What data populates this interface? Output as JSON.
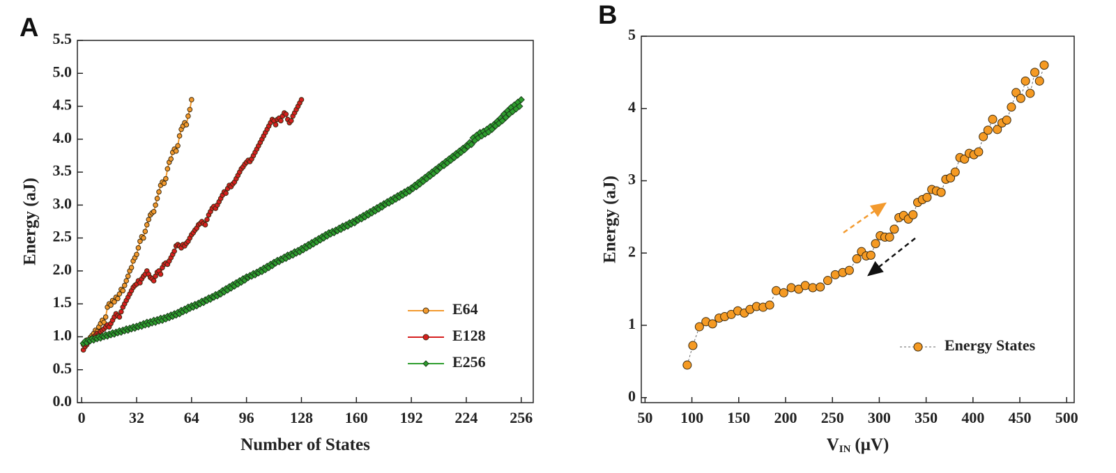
{
  "chart_data": [
    {
      "type": "line",
      "panel_label": "A",
      "xlabel": "Number of States",
      "ylabel": "Energy (aJ)",
      "xlim": [
        -2.5,
        263
      ],
      "ylim": [
        0,
        5.5
      ],
      "xticks": [
        0,
        32,
        64,
        96,
        128,
        160,
        192,
        224,
        256
      ],
      "yticks": [
        {
          "value": 0,
          "label": "0.0"
        },
        0.5,
        {
          "value": 1,
          "label": "1.0"
        },
        1.5,
        {
          "value": 2,
          "label": "2.0"
        },
        2.5,
        {
          "value": 3,
          "label": "3.0"
        },
        3.5,
        {
          "value": 4,
          "label": "4.0"
        },
        4.5,
        {
          "value": 5,
          "label": "5.0"
        },
        5.5
      ],
      "legend": "lower right",
      "series": [
        {
          "name": "E64",
          "color": "#f39a2e",
          "marker": "circle",
          "x": [
            1,
            2,
            3,
            4,
            5,
            6,
            7,
            8,
            9,
            10,
            11,
            12,
            13,
            14,
            15,
            16,
            17,
            18,
            19,
            20,
            21,
            22,
            23,
            24,
            25,
            26,
            27,
            28,
            29,
            30,
            31,
            32,
            33,
            34,
            35,
            36,
            37,
            38,
            39,
            40,
            41,
            42,
            43,
            44,
            45,
            46,
            47,
            48,
            49,
            50,
            51,
            52,
            53,
            54,
            55,
            56,
            57,
            58,
            59,
            60,
            61,
            62,
            63,
            64
          ],
          "values": [
            0.88,
            0.9,
            0.95,
            0.93,
            0.99,
            1.02,
            1.05,
            1.1,
            1.08,
            1.15,
            1.2,
            1.25,
            1.22,
            1.3,
            1.45,
            1.5,
            1.48,
            1.55,
            1.53,
            1.6,
            1.58,
            1.65,
            1.72,
            1.7,
            1.78,
            1.85,
            1.92,
            2.0,
            2.05,
            2.15,
            2.2,
            2.25,
            2.35,
            2.45,
            2.52,
            2.5,
            2.6,
            2.7,
            2.78,
            2.85,
            2.88,
            2.9,
            3.0,
            3.1,
            3.2,
            3.3,
            3.35,
            3.33,
            3.4,
            3.55,
            3.65,
            3.7,
            3.8,
            3.85,
            3.82,
            3.9,
            4.05,
            4.15,
            4.2,
            4.25,
            4.22,
            4.35,
            4.45,
            4.6
          ]
        },
        {
          "name": "E128",
          "color": "#d61f1f",
          "marker": "circle",
          "x": [
            1,
            2,
            3,
            4,
            5,
            6,
            7,
            8,
            9,
            10,
            11,
            12,
            13,
            14,
            15,
            16,
            17,
            18,
            19,
            20,
            21,
            22,
            23,
            24,
            25,
            26,
            27,
            28,
            29,
            30,
            31,
            32,
            33,
            34,
            35,
            36,
            37,
            38,
            39,
            40,
            41,
            42,
            43,
            44,
            45,
            46,
            47,
            48,
            49,
            50,
            51,
            52,
            53,
            54,
            55,
            56,
            57,
            58,
            59,
            60,
            61,
            62,
            63,
            64,
            65,
            66,
            67,
            68,
            69,
            70,
            71,
            72,
            73,
            74,
            75,
            76,
            77,
            78,
            79,
            80,
            81,
            82,
            83,
            84,
            85,
            86,
            87,
            88,
            89,
            90,
            91,
            92,
            93,
            94,
            95,
            96,
            97,
            98,
            99,
            100,
            101,
            102,
            103,
            104,
            105,
            106,
            107,
            108,
            109,
            110,
            111,
            112,
            113,
            114,
            115,
            116,
            117,
            118,
            119,
            120,
            121,
            122,
            123,
            124,
            125,
            126,
            127,
            128
          ],
          "values": [
            0.8,
            0.85,
            0.88,
            0.92,
            0.95,
            0.98,
            1.0,
            1.02,
            1.05,
            1.03,
            1.08,
            1.1,
            1.12,
            1.15,
            1.18,
            1.15,
            1.2,
            1.25,
            1.3,
            1.35,
            1.32,
            1.3,
            1.38,
            1.45,
            1.5,
            1.55,
            1.6,
            1.65,
            1.7,
            1.75,
            1.78,
            1.8,
            1.85,
            1.82,
            1.88,
            1.92,
            1.95,
            2.0,
            1.95,
            1.9,
            1.88,
            1.85,
            1.92,
            1.98,
            2.0,
            1.95,
            2.05,
            2.1,
            2.12,
            2.1,
            2.15,
            2.2,
            2.25,
            2.3,
            2.38,
            2.4,
            2.38,
            2.35,
            2.4,
            2.38,
            2.42,
            2.45,
            2.5,
            2.55,
            2.58,
            2.62,
            2.65,
            2.7,
            2.72,
            2.75,
            2.72,
            2.7,
            2.78,
            2.85,
            2.9,
            2.95,
            2.98,
            2.95,
            3.0,
            3.05,
            3.1,
            3.15,
            3.2,
            3.18,
            3.25,
            3.3,
            3.28,
            3.32,
            3.35,
            3.4,
            3.45,
            3.5,
            3.55,
            3.58,
            3.62,
            3.65,
            3.68,
            3.66,
            3.7,
            3.75,
            3.8,
            3.85,
            3.9,
            3.95,
            4.0,
            4.05,
            4.1,
            4.15,
            4.2,
            4.25,
            4.3,
            4.28,
            4.22,
            4.3,
            4.32,
            4.28,
            4.35,
            4.4,
            4.38,
            4.3,
            4.25,
            4.28,
            4.35,
            4.4,
            4.45,
            4.5,
            4.55,
            4.6
          ]
        },
        {
          "name": "E256",
          "color": "#2e9e2e",
          "marker": "diamond",
          "x": [
            1,
            2,
            3,
            4,
            5,
            6,
            7,
            8,
            9,
            10,
            11,
            12,
            13,
            14,
            15,
            16,
            17,
            18,
            19,
            20,
            21,
            22,
            23,
            24,
            25,
            26,
            27,
            28,
            29,
            30,
            31,
            32,
            33,
            34,
            35,
            36,
            37,
            38,
            39,
            40,
            41,
            42,
            43,
            44,
            45,
            46,
            47,
            48,
            49,
            50,
            51,
            52,
            53,
            54,
            55,
            56,
            57,
            58,
            59,
            60,
            61,
            62,
            63,
            64,
            65,
            66,
            67,
            68,
            69,
            70,
            71,
            72,
            73,
            74,
            75,
            76,
            77,
            78,
            79,
            80,
            81,
            82,
            83,
            84,
            85,
            86,
            87,
            88,
            89,
            90,
            91,
            92,
            93,
            94,
            95,
            96,
            97,
            98,
            99,
            100,
            101,
            102,
            103,
            104,
            105,
            106,
            107,
            108,
            109,
            110,
            111,
            112,
            113,
            114,
            115,
            116,
            117,
            118,
            119,
            120,
            121,
            122,
            123,
            124,
            125,
            126,
            127,
            128,
            129,
            130,
            131,
            132,
            133,
            134,
            135,
            136,
            137,
            138,
            139,
            140,
            141,
            142,
            143,
            144,
            145,
            146,
            147,
            148,
            149,
            150,
            151,
            152,
            153,
            154,
            155,
            156,
            157,
            158,
            159,
            160,
            161,
            162,
            163,
            164,
            165,
            166,
            167,
            168,
            169,
            170,
            171,
            172,
            173,
            174,
            175,
            176,
            177,
            178,
            179,
            180,
            181,
            182,
            183,
            184,
            185,
            186,
            187,
            188,
            189,
            190,
            191,
            192,
            193,
            194,
            195,
            196,
            197,
            198,
            199,
            200,
            201,
            202,
            203,
            204,
            205,
            206,
            207,
            208,
            209,
            210,
            211,
            212,
            213,
            214,
            215,
            216,
            217,
            218,
            219,
            220,
            221,
            222,
            223,
            224,
            225,
            226,
            227,
            228,
            229,
            230,
            231,
            232,
            233,
            234,
            235,
            236,
            237,
            238,
            239,
            240,
            241,
            242,
            243,
            244,
            245,
            246,
            247,
            248,
            249,
            250,
            251,
            252,
            253,
            254,
            255,
            256
          ],
          "values": [
            0.9,
            0.93,
            0.91,
            0.95,
            0.94,
            0.97,
            0.95,
            0.98,
            0.97,
            1.0,
            0.98,
            1.01,
            1.0,
            1.03,
            1.01,
            1.04,
            1.03,
            1.06,
            1.04,
            1.07,
            1.06,
            1.09,
            1.07,
            1.1,
            1.09,
            1.12,
            1.1,
            1.13,
            1.12,
            1.15,
            1.13,
            1.16,
            1.15,
            1.18,
            1.16,
            1.2,
            1.18,
            1.22,
            1.19,
            1.23,
            1.21,
            1.25,
            1.22,
            1.26,
            1.24,
            1.28,
            1.25,
            1.29,
            1.27,
            1.31,
            1.29,
            1.33,
            1.31,
            1.35,
            1.33,
            1.37,
            1.35,
            1.4,
            1.38,
            1.42,
            1.4,
            1.45,
            1.43,
            1.47,
            1.45,
            1.49,
            1.47,
            1.51,
            1.5,
            1.54,
            1.52,
            1.56,
            1.55,
            1.59,
            1.57,
            1.61,
            1.6,
            1.64,
            1.62,
            1.66,
            1.65,
            1.7,
            1.68,
            1.73,
            1.71,
            1.76,
            1.74,
            1.79,
            1.77,
            1.82,
            1.8,
            1.85,
            1.83,
            1.88,
            1.86,
            1.91,
            1.9,
            1.93,
            1.92,
            1.96,
            1.94,
            1.98,
            1.97,
            2.01,
            1.99,
            2.04,
            2.02,
            2.07,
            2.05,
            2.1,
            2.08,
            2.13,
            2.12,
            2.16,
            2.14,
            2.18,
            2.17,
            2.21,
            2.19,
            2.24,
            2.22,
            2.26,
            2.24,
            2.29,
            2.27,
            2.31,
            2.29,
            2.34,
            2.32,
            2.37,
            2.35,
            2.4,
            2.38,
            2.43,
            2.41,
            2.46,
            2.44,
            2.49,
            2.47,
            2.52,
            2.5,
            2.55,
            2.53,
            2.58,
            2.56,
            2.6,
            2.58,
            2.62,
            2.61,
            2.65,
            2.63,
            2.68,
            2.66,
            2.7,
            2.68,
            2.73,
            2.71,
            2.75,
            2.73,
            2.78,
            2.77,
            2.81,
            2.79,
            2.84,
            2.82,
            2.87,
            2.85,
            2.9,
            2.88,
            2.93,
            2.91,
            2.96,
            2.94,
            2.99,
            2.97,
            3.02,
            3.01,
            3.05,
            3.03,
            3.08,
            3.06,
            3.11,
            3.09,
            3.14,
            3.12,
            3.17,
            3.15,
            3.2,
            3.18,
            3.23,
            3.21,
            3.26,
            3.25,
            3.3,
            3.28,
            3.34,
            3.32,
            3.38,
            3.36,
            3.42,
            3.4,
            3.46,
            3.44,
            3.5,
            3.48,
            3.54,
            3.52,
            3.58,
            3.57,
            3.62,
            3.6,
            3.66,
            3.64,
            3.7,
            3.68,
            3.74,
            3.72,
            3.78,
            3.76,
            3.82,
            3.8,
            3.86,
            3.84,
            3.9,
            3.89,
            3.95,
            3.92,
            4.02,
            3.98,
            4.06,
            4.02,
            4.1,
            4.05,
            4.12,
            4.08,
            4.15,
            4.11,
            4.19,
            4.15,
            4.22,
            4.2,
            4.27,
            4.24,
            4.32,
            4.28,
            4.38,
            4.33,
            4.43,
            4.38,
            4.48,
            4.42,
            4.52,
            4.46,
            4.56,
            4.5,
            4.6
          ]
        }
      ]
    },
    {
      "type": "line",
      "panel_label": "B",
      "xlabel": "V",
      "xlabel_sub": "IN",
      "xlabel_unit": "(μV)",
      "ylabel": "Energy (aJ)",
      "xlim": [
        46,
        508
      ],
      "ylim": [
        -0.07,
        5
      ],
      "xticks": [
        50,
        100,
        150,
        200,
        250,
        300,
        350,
        400,
        450,
        500
      ],
      "yticks": [
        0,
        1,
        2,
        3,
        4,
        5
      ],
      "legend": "lower right",
      "series": [
        {
          "name": "Energy States",
          "color": "#f59a23",
          "marker": "circle",
          "line_color": "#666",
          "line_style": "dashed",
          "x": [
            95,
            101,
            108,
            115,
            122,
            129,
            135,
            142,
            149,
            156,
            162,
            169,
            176,
            183,
            190,
            198,
            206,
            214,
            221,
            229,
            237,
            245,
            253,
            261,
            268,
            276,
            281,
            286,
            291,
            296,
            301,
            306,
            311,
            316,
            321,
            326,
            331,
            336,
            341,
            346,
            351,
            356,
            361,
            366,
            371,
            376,
            381,
            386,
            391,
            396,
            401,
            406,
            411,
            416,
            421,
            426,
            431,
            436,
            441,
            446,
            451,
            456,
            461,
            466,
            471,
            476
          ],
          "values": [
            0.45,
            0.72,
            0.98,
            1.05,
            1.02,
            1.1,
            1.12,
            1.15,
            1.2,
            1.17,
            1.22,
            1.26,
            1.25,
            1.28,
            1.48,
            1.45,
            1.52,
            1.5,
            1.55,
            1.52,
            1.53,
            1.62,
            1.7,
            1.73,
            1.76,
            1.92,
            2.02,
            1.96,
            1.97,
            2.13,
            2.24,
            2.22,
            2.22,
            2.33,
            2.49,
            2.52,
            2.47,
            2.53,
            2.7,
            2.74,
            2.77,
            2.88,
            2.86,
            2.84,
            3.02,
            3.04,
            3.12,
            3.32,
            3.3,
            3.38,
            3.36,
            3.4,
            3.61,
            3.7,
            3.85,
            3.71,
            3.8,
            3.84,
            4.02,
            4.22,
            4.14,
            4.38,
            4.21,
            4.5,
            4.38,
            4.6
          ]
        }
      ]
    }
  ]
}
